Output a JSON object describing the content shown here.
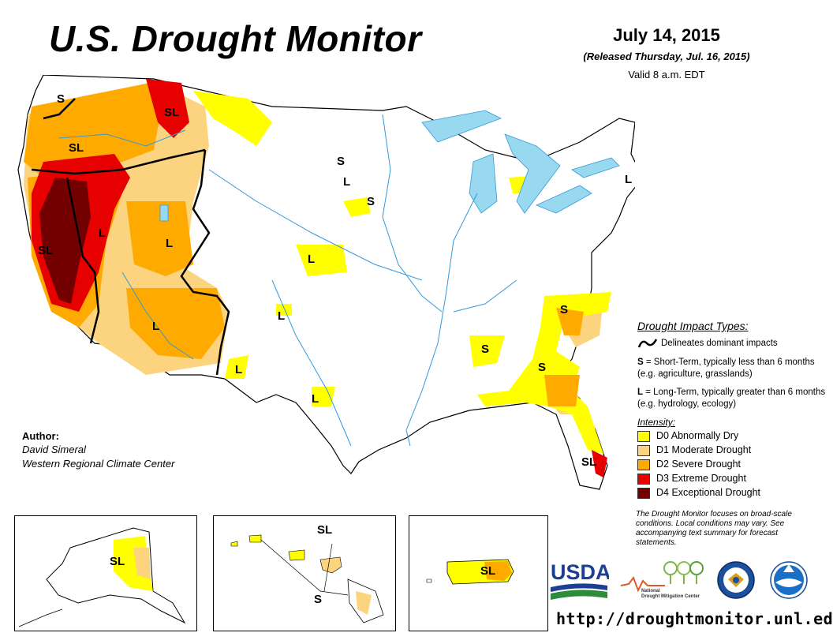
{
  "header": {
    "title": "U.S. Drought Monitor",
    "date": "July 14, 2015",
    "released": "(Released Thursday, Jul. 16, 2015)",
    "valid": "Valid 8 a.m. EDT"
  },
  "impact_legend": {
    "title": "Drought Impact Types:",
    "line_text": "Delineates dominant impacts",
    "short_term_key": "S",
    "short_term_text": "= Short-Term, typically less than 6 months (e.g. agriculture, grasslands)",
    "long_term_key": "L",
    "long_term_text": "= Long-Term, typically greater than 6 months (e.g. hydrology, ecology)"
  },
  "intensity_legend": {
    "title": "Intensity:",
    "items": [
      {
        "label": "D0 Abnormally Dry",
        "color": "#ffff00"
      },
      {
        "label": "D1 Moderate Drought",
        "color": "#fcd37f"
      },
      {
        "label": "D2 Severe Drought",
        "color": "#ffaa00"
      },
      {
        "label": "D3 Extreme Drought",
        "color": "#e60000"
      },
      {
        "label": "D4 Exceptional Drought",
        "color": "#730000"
      }
    ]
  },
  "note": "The Drought Monitor focuses on broad-scale conditions. Local conditions may vary. See accompanying text summary for forecast statements.",
  "author": {
    "label": "Author:",
    "name": "David Simeral",
    "org": "Western Regional Climate Center"
  },
  "map_labels": {
    "wa": "S",
    "nid": "SL",
    "or": "SL",
    "ca": "SL",
    "nv": "L",
    "ut": "L",
    "az": "L",
    "nm": "L",
    "tx_w": "L",
    "tx_c": "L",
    "ks": "L",
    "nd": "S",
    "sd": "L",
    "mn": "S",
    "va": "S",
    "al": "S",
    "ga": "S",
    "fl": "SL",
    "me": "L",
    "ny": "L",
    "ct": "L",
    "ak": "SL",
    "hi_top": "SL",
    "hi_bottom": "S",
    "pr": "SL"
  },
  "logos": {
    "usda": "USDA",
    "ndmc_line1": "National",
    "ndmc_line2": "Drought Mitigation Center"
  },
  "url": "http://droughtmonitor.unl.edu/",
  "colors": {
    "d0": "#ffff00",
    "d1": "#fcd37f",
    "d2": "#ffaa00",
    "d3": "#e60000",
    "d4": "#730000",
    "water": "#99d9f0",
    "river": "#3399dd"
  }
}
